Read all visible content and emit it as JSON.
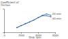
{
  "chart_data": {
    "type": "line",
    "y_label": "Coefficient of friction",
    "x_label": "Disk rpm",
    "x": [
      1500,
      2000,
      2500,
      3000,
      3500,
      4000,
      4500,
      5000,
      5500
    ],
    "series": [
      {
        "name": "20 min",
        "color": "#3a6db5",
        "values": [
          0.2,
          0.24,
          0.28,
          0.32,
          0.36,
          0.41,
          0.46,
          0.49,
          0.46
        ]
      },
      {
        "name": "40 min",
        "color": "#3a6db5",
        "values": [
          0.2,
          0.24,
          0.28,
          0.32,
          0.36,
          0.41,
          0.45,
          0.45,
          0.43
        ]
      }
    ],
    "xlim": [
      0,
      6000
    ],
    "xticks": [
      0,
      2000,
      4000,
      6000
    ],
    "ylim": [
      0.1,
      0.6
    ],
    "tick_labels": "x",
    "marker": "circle"
  }
}
